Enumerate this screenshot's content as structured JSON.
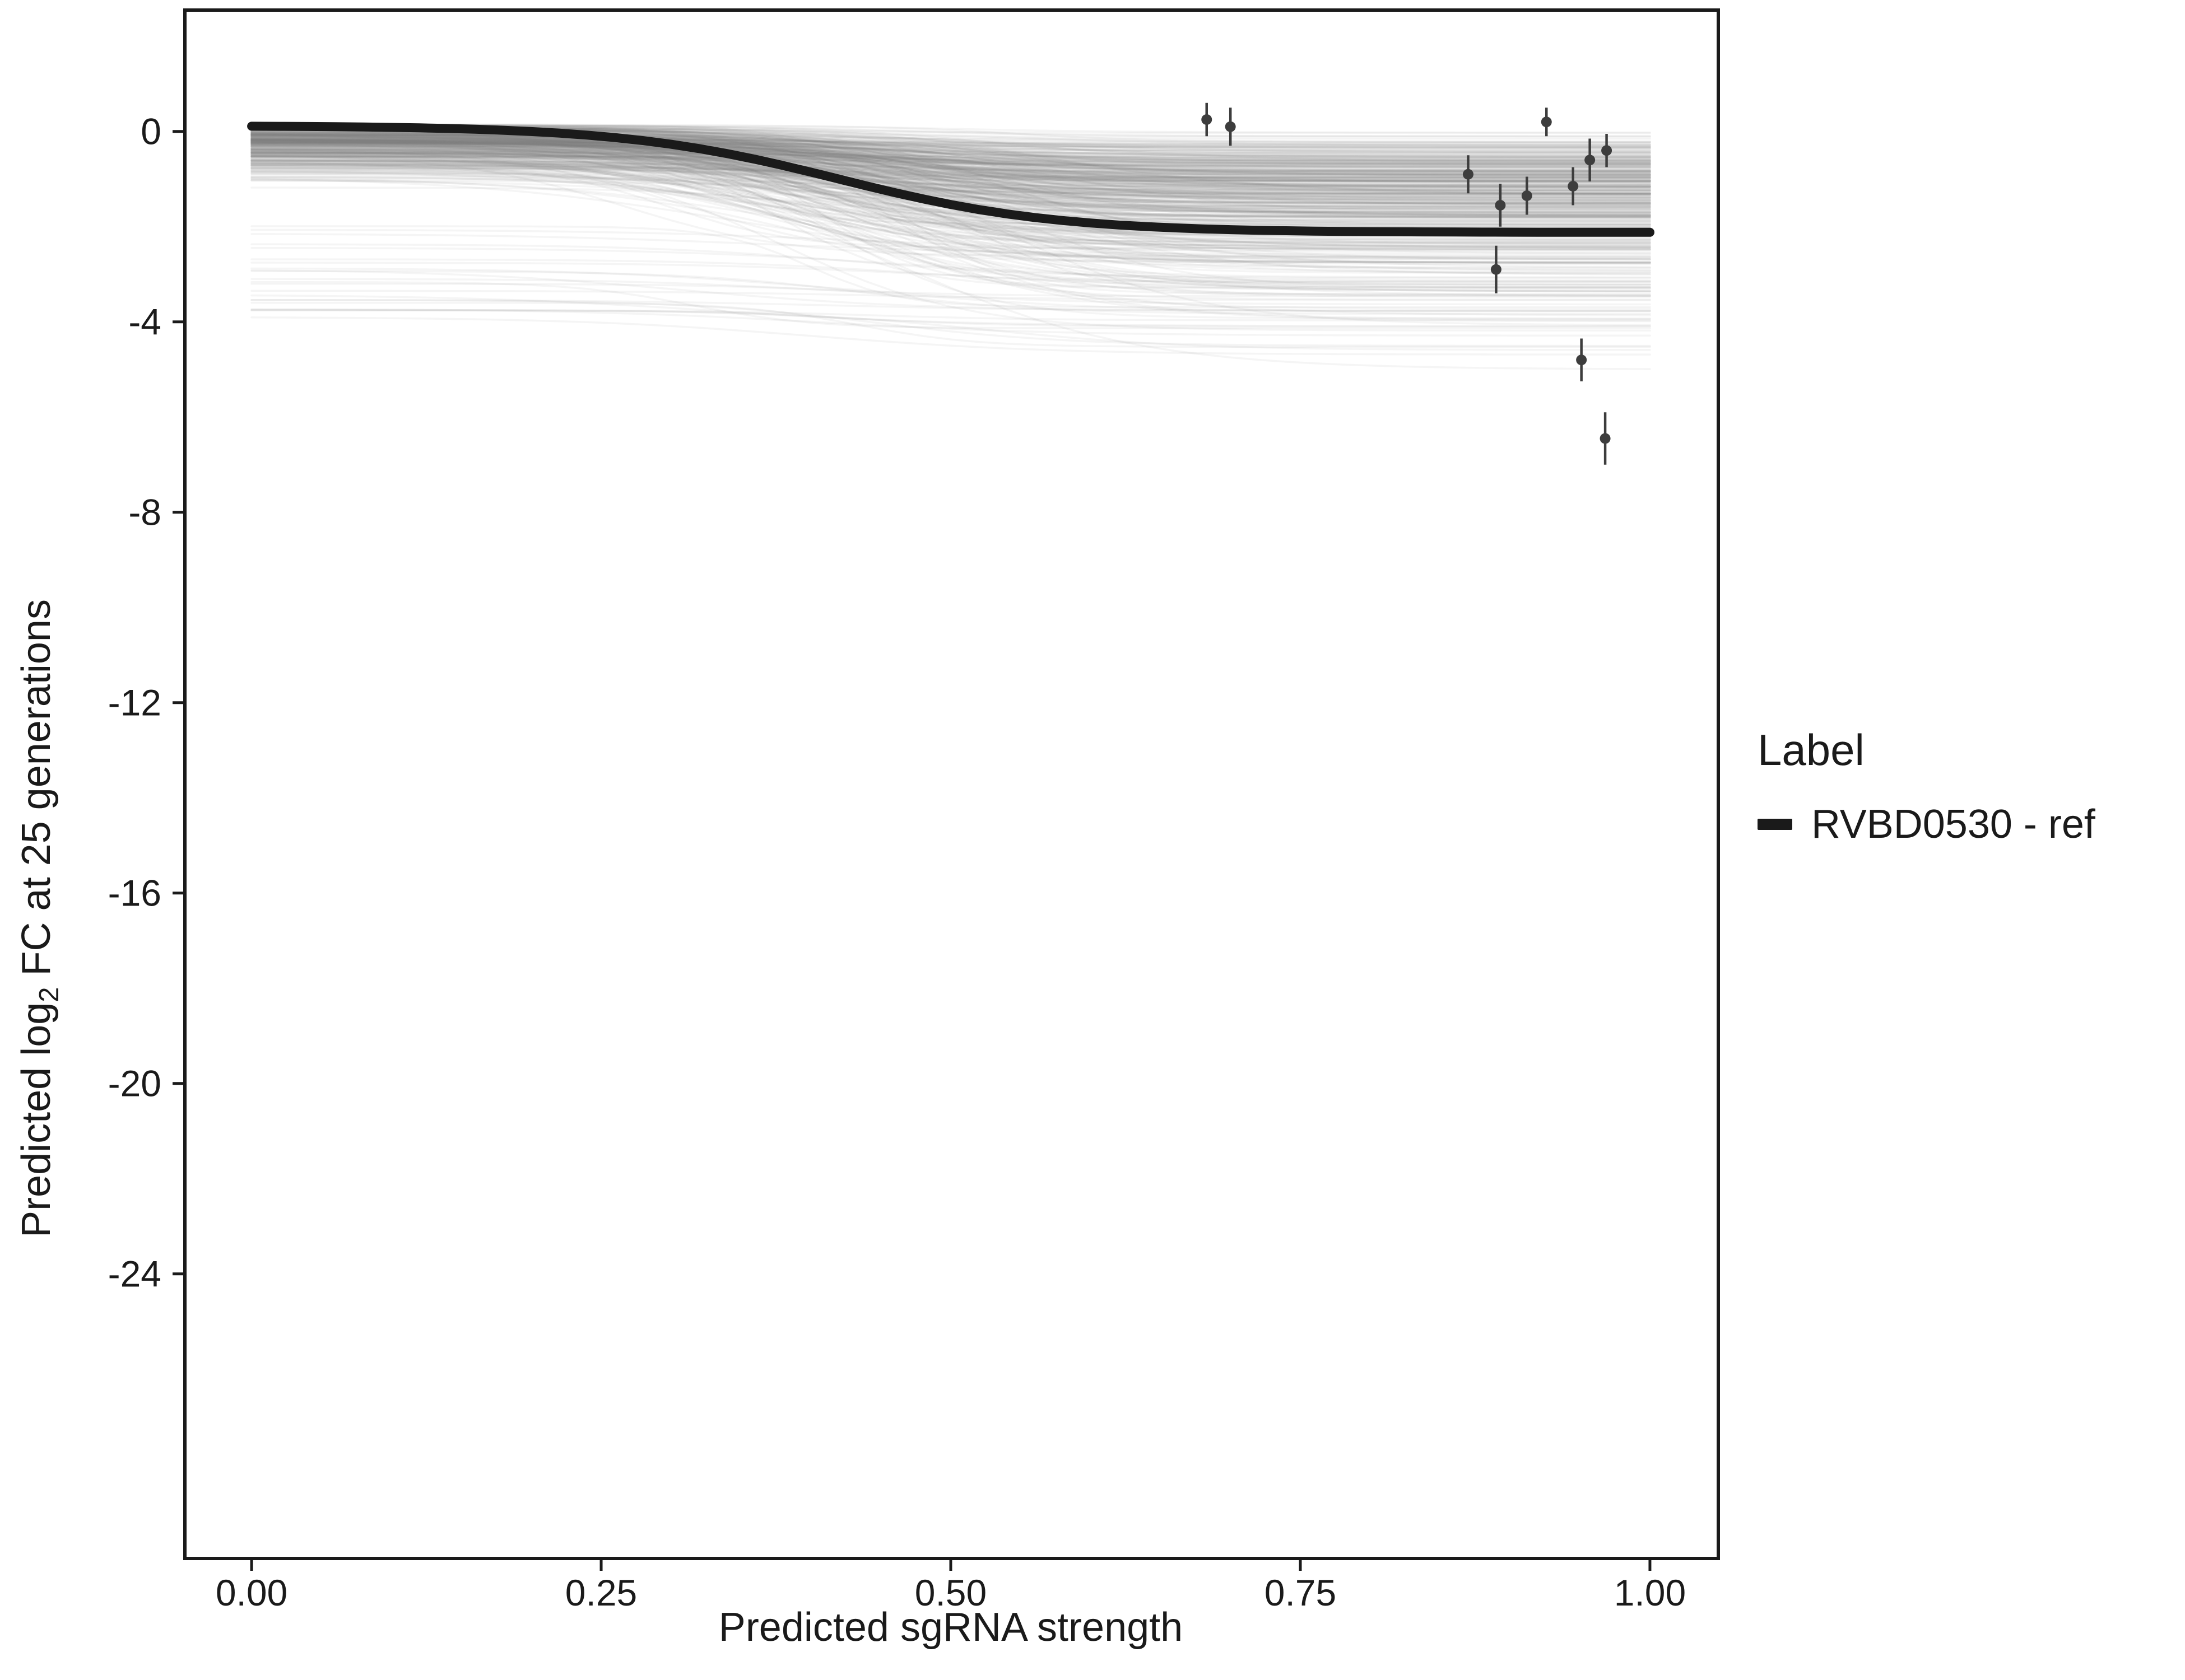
{
  "chart_data": {
    "type": "line",
    "title": "",
    "xlabel": "Predicted sgRNA strength",
    "ylabel_parts": {
      "pre": "Predicted  log",
      "sub": "2",
      "post": " FC at 25 generations"
    },
    "x_ticks": [
      0,
      0.25,
      0.5,
      0.75,
      1
    ],
    "x_tick_labels": [
      "0.00",
      "0.25",
      "0.50",
      "0.75",
      "1.00"
    ],
    "y_ticks": [
      0,
      -4,
      -8,
      -12,
      -16,
      -20,
      -24
    ],
    "y_tick_labels": [
      "0",
      "-4",
      "-8",
      "-12",
      "-16",
      "-20",
      "-24"
    ],
    "xlim": [
      -0.0477,
      1.0489
    ],
    "ylim": [
      -29.98,
      2.55
    ],
    "grid": "off",
    "panel_border_color": "#1a1a1a",
    "main_curve": {
      "label": "RVBD0530 - ref",
      "color": "#1a1a1a",
      "width": 16,
      "x_range": [
        0,
        1
      ],
      "logistic": {
        "top": 0.12,
        "bottom": -2.12,
        "x0": 0.42,
        "k": 13
      }
    },
    "posterior_lines": {
      "count": 450,
      "color": "#7f7f7f",
      "opacity": 0.08,
      "width": 3.5,
      "seed": 42,
      "top_center": 0.15,
      "top_sd": 0.5,
      "drop_min": 0.1,
      "drop_sd": 1.5,
      "deep_flat_fraction": 0.06,
      "bottom_clamp": -5.0,
      "x0_center": 0.43,
      "x0_sd": 0.06,
      "k_base": 10,
      "k_sd": 7
    },
    "points": [
      {
        "x": 0.683,
        "y": 0.25,
        "err": 0.35
      },
      {
        "x": 0.7,
        "y": 0.1,
        "err": 0.4
      },
      {
        "x": 0.87,
        "y": -0.9,
        "err": 0.4
      },
      {
        "x": 0.893,
        "y": -1.55,
        "err": 0.45
      },
      {
        "x": 0.912,
        "y": -1.35,
        "err": 0.4
      },
      {
        "x": 0.926,
        "y": 0.2,
        "err": 0.3
      },
      {
        "x": 0.89,
        "y": -2.9,
        "err": 0.5
      },
      {
        "x": 0.945,
        "y": -1.15,
        "err": 0.4
      },
      {
        "x": 0.957,
        "y": -0.6,
        "err": 0.45
      },
      {
        "x": 0.969,
        "y": -0.4,
        "err": 0.35
      },
      {
        "x": 0.951,
        "y": -4.8,
        "err": 0.45
      },
      {
        "x": 0.968,
        "y": -6.45,
        "err": 0.55
      }
    ],
    "points_color": "#3d3d3d",
    "legend": {
      "title": "Label",
      "items": [
        {
          "label": "RVBD0530 - ref",
          "color": "#1a1a1a"
        }
      ]
    }
  }
}
